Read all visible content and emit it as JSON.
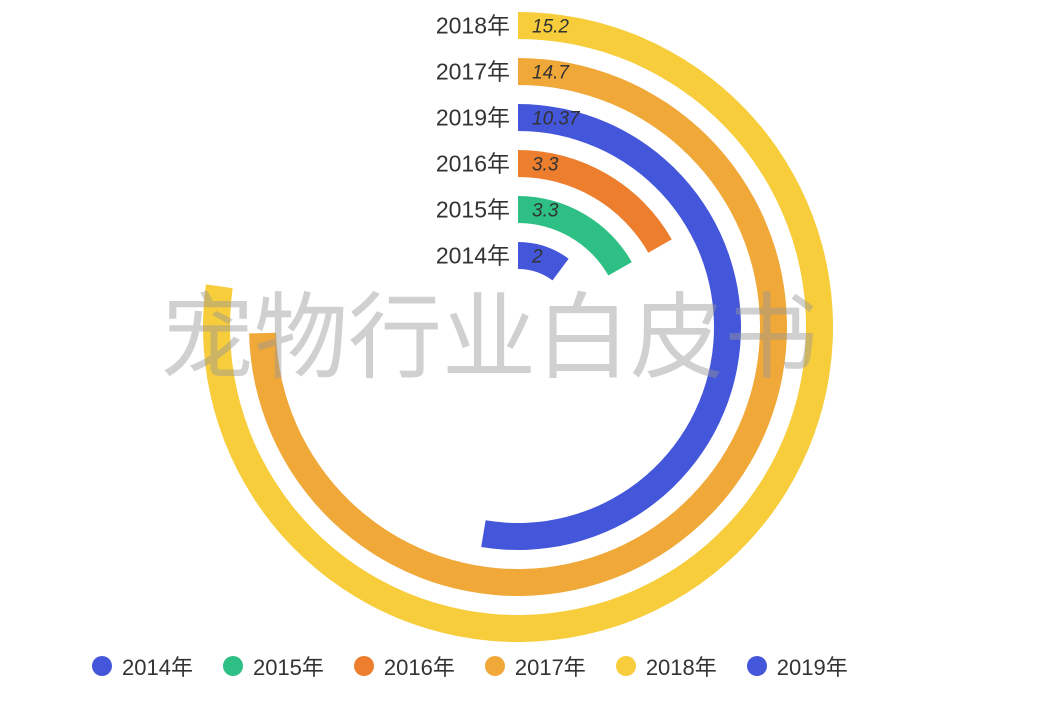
{
  "chart_data": {
    "type": "radial-bar",
    "max": 19.7,
    "categories": [
      "2014年",
      "2015年",
      "2016年",
      "2019年",
      "2017年",
      "2018年"
    ],
    "values": [
      2,
      3.3,
      3.3,
      10.37,
      14.7,
      15.2
    ],
    "value_labels": [
      "2",
      "3.3",
      "3.3",
      "10.37",
      "14.7",
      "15.2"
    ],
    "colors": [
      "#4456D9",
      "#2DBF84",
      "#EC7E2D",
      "#4456D9",
      "#F0A838",
      "#F7CD3C"
    ],
    "legend": [
      {
        "label": "2014年",
        "color": "#4456D9"
      },
      {
        "label": "2015年",
        "color": "#2DBF84"
      },
      {
        "label": "2016年",
        "color": "#EC7E2D"
      },
      {
        "label": "2017年",
        "color": "#F0A838"
      },
      {
        "label": "2018年",
        "color": "#F7CD3C"
      },
      {
        "label": "2019年",
        "color": "#4456D9"
      }
    ],
    "legend_position": "bottom"
  },
  "watermark": "宠物行业白皮书"
}
